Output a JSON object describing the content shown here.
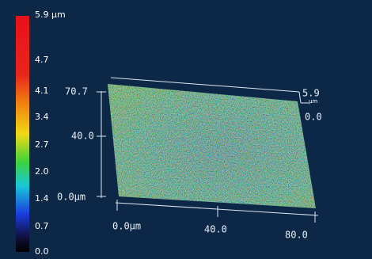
{
  "scale": {
    "labels": [
      "5.9 µm",
      "4.7",
      "4.1",
      "3.4",
      "2.7",
      "2.0",
      "1.4",
      "0.7",
      "0.0"
    ]
  },
  "axes": {
    "y": [
      "70.7",
      "40.0",
      "0.0µm"
    ],
    "x": [
      "0.0µm",
      "40.0",
      "80.0"
    ],
    "z": [
      "5.9",
      "µm",
      "0.0"
    ]
  }
}
